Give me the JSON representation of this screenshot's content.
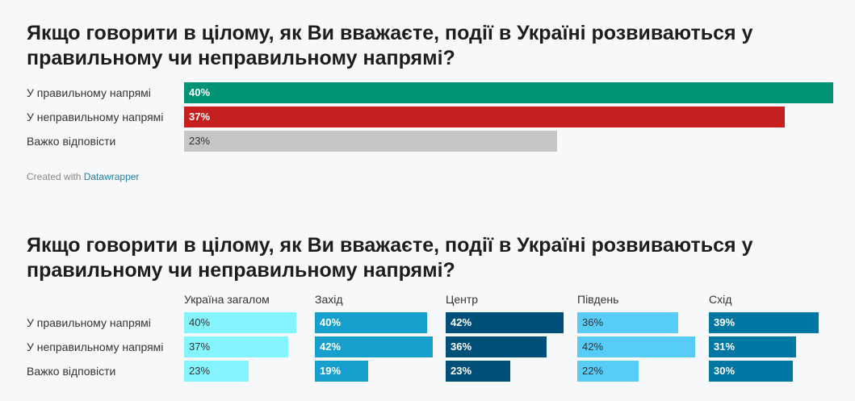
{
  "chart_data": [
    {
      "type": "bar",
      "title": "Якщо говорити в цілому, як Ви вважаєте, події в Україні розвиваються у правильному чи неправильному напрямі?",
      "categories": [
        "У правильному напрямі",
        "У неправильному напрямі",
        "Важко відповісти"
      ],
      "values": [
        40,
        37,
        23
      ],
      "value_labels": [
        "40%",
        "37%",
        "23%"
      ],
      "colors": [
        "#009374",
        "#c61f1f",
        "#c6c6c6"
      ],
      "xlim": [
        0,
        40
      ]
    },
    {
      "type": "bar",
      "title": "Якщо говорити в цілому, як Ви вважаєте, події в Україні розвиваються у правильному чи неправильному напрямі?",
      "categories": [
        "У правильному напрямі",
        "У неправильному напрямі",
        "Важко відповісти"
      ],
      "series": [
        {
          "name": "Україна загалом",
          "values": [
            40,
            37,
            23
          ],
          "value_labels": [
            "40%",
            "37%",
            "23%"
          ],
          "color": "#85f4fe",
          "label_color": "#333333"
        },
        {
          "name": "Захід",
          "values": [
            40,
            42,
            19
          ],
          "value_labels": [
            "40%",
            "42%",
            "19%"
          ],
          "color": "#17a0cd",
          "label_color": "#ffffff"
        },
        {
          "name": "Центр",
          "values": [
            42,
            36,
            23
          ],
          "value_labels": [
            "42%",
            "36%",
            "23%"
          ],
          "color": "#00507a",
          "label_color": "#ffffff"
        },
        {
          "name": "Південь",
          "values": [
            36,
            42,
            22
          ],
          "value_labels": [
            "36%",
            "42%",
            "22%"
          ],
          "color": "#56ccf7",
          "label_color": "#333333"
        },
        {
          "name": "Схід",
          "values": [
            39,
            31,
            30
          ],
          "value_labels": [
            "39%",
            "31%",
            "30%"
          ],
          "color": "#0077a2",
          "label_color": "#ffffff"
        }
      ],
      "xlim": [
        0,
        42
      ]
    }
  ],
  "credit": {
    "prefix": "Created with",
    "link": "Datawrapper"
  }
}
